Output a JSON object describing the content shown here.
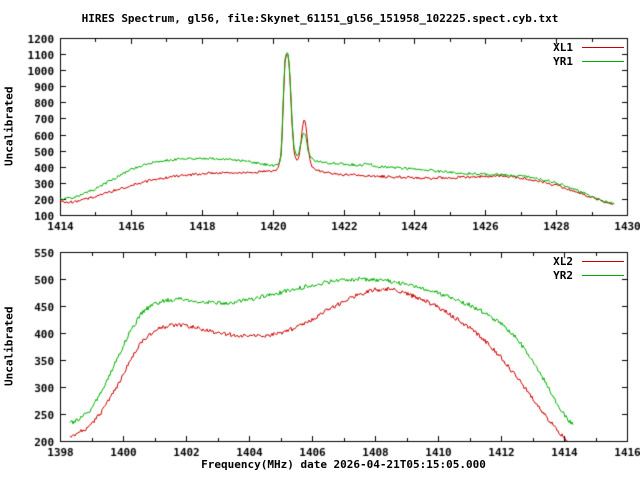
{
  "title": "HIRES Spectrum, gl56, file:Skynet_61151_gl56_151958_102225.spect.cyb.txt",
  "xlabel": "Frequency(MHz) date 2026-04-21T05:15:05.000",
  "chart_data": [
    {
      "type": "line",
      "panel": "top",
      "ylabel": "Uncalibrated",
      "xlim": [
        1414,
        1430
      ],
      "ylim": [
        100,
        1200
      ],
      "xticks": [
        1414,
        1416,
        1418,
        1420,
        1422,
        1424,
        1426,
        1428,
        1430
      ],
      "xtick_minor": 1,
      "yticks": [
        100,
        200,
        300,
        400,
        500,
        600,
        700,
        800,
        900,
        1000,
        1100,
        1200
      ],
      "grid": false,
      "legend_position": "top-right",
      "series": [
        {
          "name": "XL1",
          "color": "#cc0000",
          "points": [
            [
              1414.0,
              185
            ],
            [
              1414.3,
              180
            ],
            [
              1414.6,
              190
            ],
            [
              1415.0,
              215
            ],
            [
              1415.5,
              250
            ],
            [
              1416.0,
              285
            ],
            [
              1416.5,
              312
            ],
            [
              1417.0,
              332
            ],
            [
              1417.5,
              346
            ],
            [
              1418.0,
              356
            ],
            [
              1418.5,
              361
            ],
            [
              1419.0,
              363
            ],
            [
              1419.5,
              366
            ],
            [
              1419.8,
              371
            ],
            [
              1420.0,
              376
            ],
            [
              1420.15,
              386
            ],
            [
              1420.25,
              480
            ],
            [
              1420.3,
              800
            ],
            [
              1420.35,
              1060
            ],
            [
              1420.4,
              1100
            ],
            [
              1420.45,
              1085
            ],
            [
              1420.5,
              900
            ],
            [
              1420.55,
              650
            ],
            [
              1420.6,
              500
            ],
            [
              1420.65,
              452
            ],
            [
              1420.7,
              440
            ],
            [
              1420.75,
              470
            ],
            [
              1420.8,
              560
            ],
            [
              1420.85,
              660
            ],
            [
              1420.9,
              700
            ],
            [
              1420.95,
              640
            ],
            [
              1421.0,
              520
            ],
            [
              1421.05,
              440
            ],
            [
              1421.1,
              402
            ],
            [
              1421.2,
              382
            ],
            [
              1421.4,
              367
            ],
            [
              1421.7,
              357
            ],
            [
              1422.0,
              352
            ],
            [
              1422.5,
              346
            ],
            [
              1423.0,
              341
            ],
            [
              1423.5,
              336
            ],
            [
              1424.0,
              331
            ],
            [
              1424.5,
              329
            ],
            [
              1425.0,
              331
            ],
            [
              1425.5,
              336
            ],
            [
              1426.0,
              341
            ],
            [
              1426.3,
              343
            ],
            [
              1426.6,
              341
            ],
            [
              1427.0,
              331
            ],
            [
              1427.4,
              316
            ],
            [
              1427.8,
              296
            ],
            [
              1428.2,
              271
            ],
            [
              1428.6,
              241
            ],
            [
              1429.0,
              211
            ],
            [
              1429.3,
              186
            ],
            [
              1429.5,
              172
            ],
            [
              1429.65,
              168
            ]
          ]
        },
        {
          "name": "YR1",
          "color": "#00b000",
          "points": [
            [
              1414.0,
              200
            ],
            [
              1414.3,
              206
            ],
            [
              1414.6,
              226
            ],
            [
              1415.0,
              262
            ],
            [
              1415.5,
              322
            ],
            [
              1416.0,
              382
            ],
            [
              1416.5,
              422
            ],
            [
              1417.0,
              441
            ],
            [
              1417.5,
              450
            ],
            [
              1418.0,
              452
            ],
            [
              1418.5,
              449
            ],
            [
              1419.0,
              440
            ],
            [
              1419.3,
              431
            ],
            [
              1419.6,
              421
            ],
            [
              1419.9,
              411
            ],
            [
              1420.1,
              406
            ],
            [
              1420.2,
              421
            ],
            [
              1420.25,
              520
            ],
            [
              1420.3,
              830
            ],
            [
              1420.35,
              1080
            ],
            [
              1420.4,
              1110
            ],
            [
              1420.45,
              1095
            ],
            [
              1420.5,
              920
            ],
            [
              1420.55,
              680
            ],
            [
              1420.6,
              530
            ],
            [
              1420.65,
              482
            ],
            [
              1420.7,
              470
            ],
            [
              1420.75,
              490
            ],
            [
              1420.8,
              550
            ],
            [
              1420.85,
              600
            ],
            [
              1420.9,
              618
            ],
            [
              1420.95,
              570
            ],
            [
              1421.0,
              502
            ],
            [
              1421.1,
              452
            ],
            [
              1421.2,
              436
            ],
            [
              1421.5,
              426
            ],
            [
              1422.0,
              416
            ],
            [
              1422.5,
              409
            ],
            [
              1422.7,
              421
            ],
            [
              1422.85,
              406
            ],
            [
              1423.0,
              401
            ],
            [
              1423.5,
              393
            ],
            [
              1424.0,
              386
            ],
            [
              1424.5,
              376
            ],
            [
              1425.0,
              366
            ],
            [
              1425.5,
              359
            ],
            [
              1426.0,
              353
            ],
            [
              1426.5,
              349
            ],
            [
              1427.0,
              341
            ],
            [
              1427.4,
              329
            ],
            [
              1427.8,
              311
            ],
            [
              1428.2,
              286
            ],
            [
              1428.6,
              251
            ],
            [
              1429.0,
              216
            ],
            [
              1429.3,
              191
            ],
            [
              1429.5,
              177
            ],
            [
              1429.65,
              172
            ]
          ]
        }
      ]
    },
    {
      "type": "line",
      "panel": "bottom",
      "ylabel": "Uncalibrated",
      "xlim": [
        1398,
        1416
      ],
      "ylim": [
        200,
        550
      ],
      "xticks": [
        1398,
        1400,
        1402,
        1404,
        1406,
        1408,
        1410,
        1412,
        1414,
        1416
      ],
      "xtick_minor": 1,
      "yticks": [
        200,
        250,
        300,
        350,
        400,
        450,
        500,
        550
      ],
      "grid": false,
      "legend_position": "top-right",
      "series": [
        {
          "name": "XL2",
          "color": "#cc0000",
          "points": [
            [
              1398.3,
              210
            ],
            [
              1398.6,
              215
            ],
            [
              1399.0,
              230
            ],
            [
              1399.4,
              260
            ],
            [
              1399.8,
              300
            ],
            [
              1400.2,
              345
            ],
            [
              1400.6,
              385
            ],
            [
              1401.0,
              405
            ],
            [
              1401.4,
              413
            ],
            [
              1401.8,
              415
            ],
            [
              1402.2,
              412
            ],
            [
              1402.6,
              405
            ],
            [
              1403.0,
              400
            ],
            [
              1403.5,
              396
            ],
            [
              1404.0,
              394
            ],
            [
              1404.5,
              395
            ],
            [
              1405.0,
              400
            ],
            [
              1405.5,
              410
            ],
            [
              1406.0,
              425
            ],
            [
              1406.5,
              442
            ],
            [
              1407.0,
              458
            ],
            [
              1407.5,
              472
            ],
            [
              1408.0,
              480
            ],
            [
              1408.3,
              482
            ],
            [
              1408.6,
              480
            ],
            [
              1409.0,
              473
            ],
            [
              1409.5,
              462
            ],
            [
              1410.0,
              448
            ],
            [
              1410.5,
              430
            ],
            [
              1411.0,
              410
            ],
            [
              1411.5,
              385
            ],
            [
              1412.0,
              355
            ],
            [
              1412.5,
              318
            ],
            [
              1413.0,
              280
            ],
            [
              1413.5,
              240
            ],
            [
              1413.8,
              218
            ],
            [
              1414.1,
              200
            ],
            [
              1414.3,
              195
            ]
          ]
        },
        {
          "name": "YR2",
          "color": "#00b000",
          "points": [
            [
              1398.3,
              232
            ],
            [
              1398.6,
              240
            ],
            [
              1399.0,
              260
            ],
            [
              1399.4,
              300
            ],
            [
              1399.8,
              350
            ],
            [
              1400.2,
              400
            ],
            [
              1400.6,
              438
            ],
            [
              1401.0,
              455
            ],
            [
              1401.4,
              460
            ],
            [
              1401.8,
              462
            ],
            [
              1402.2,
              460
            ],
            [
              1402.6,
              457
            ],
            [
              1403.0,
              455
            ],
            [
              1403.5,
              457
            ],
            [
              1404.0,
              462
            ],
            [
              1404.5,
              468
            ],
            [
              1405.0,
              475
            ],
            [
              1405.5,
              482
            ],
            [
              1406.0,
              488
            ],
            [
              1406.5,
              494
            ],
            [
              1407.0,
              498
            ],
            [
              1407.5,
              500
            ],
            [
              1408.0,
              499
            ],
            [
              1408.5,
              496
            ],
            [
              1409.0,
              490
            ],
            [
              1409.5,
              483
            ],
            [
              1410.0,
              474
            ],
            [
              1410.5,
              464
            ],
            [
              1411.0,
              452
            ],
            [
              1411.5,
              437
            ],
            [
              1412.0,
              417
            ],
            [
              1412.5,
              390
            ],
            [
              1413.0,
              350
            ],
            [
              1413.4,
              310
            ],
            [
              1413.8,
              268
            ],
            [
              1414.1,
              240
            ],
            [
              1414.3,
              232
            ]
          ]
        }
      ]
    }
  ]
}
